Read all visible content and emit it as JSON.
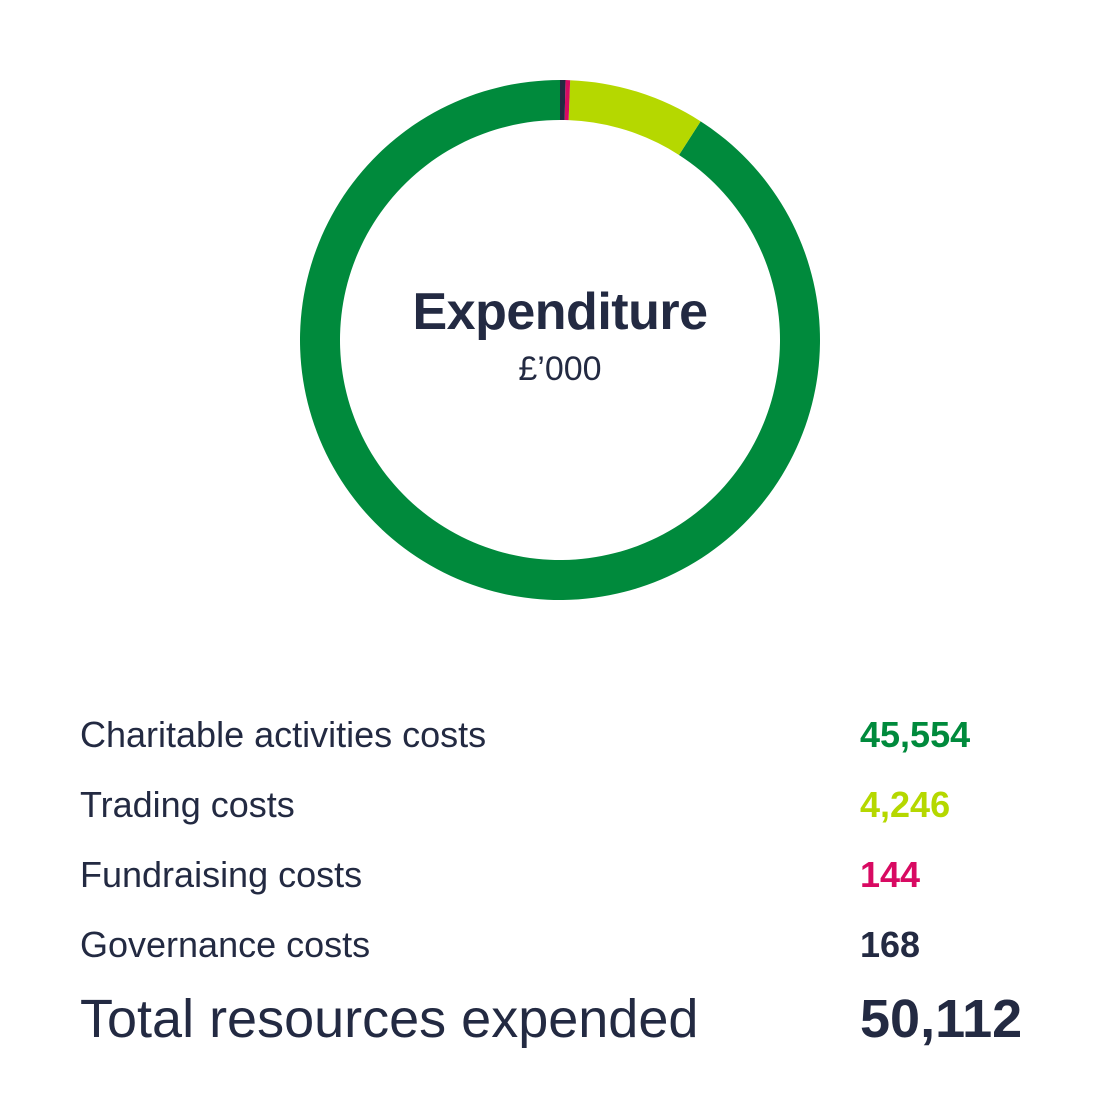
{
  "chart_data": {
    "type": "pie",
    "style": "donut",
    "title": "Expenditure",
    "subtitle": "£’000",
    "categories": [
      "Charitable activities costs",
      "Trading costs",
      "Fundraising costs",
      "Governance costs"
    ],
    "values": [
      45554,
      4246,
      144,
      168
    ],
    "value_labels": [
      "45,554",
      "4,246",
      "144",
      "168"
    ],
    "colors": [
      "#008a3c",
      "#b5d800",
      "#d80a62",
      "#232a42"
    ],
    "total": {
      "label": "Total resources expended",
      "value": 50112,
      "value_label": "50,112"
    }
  }
}
